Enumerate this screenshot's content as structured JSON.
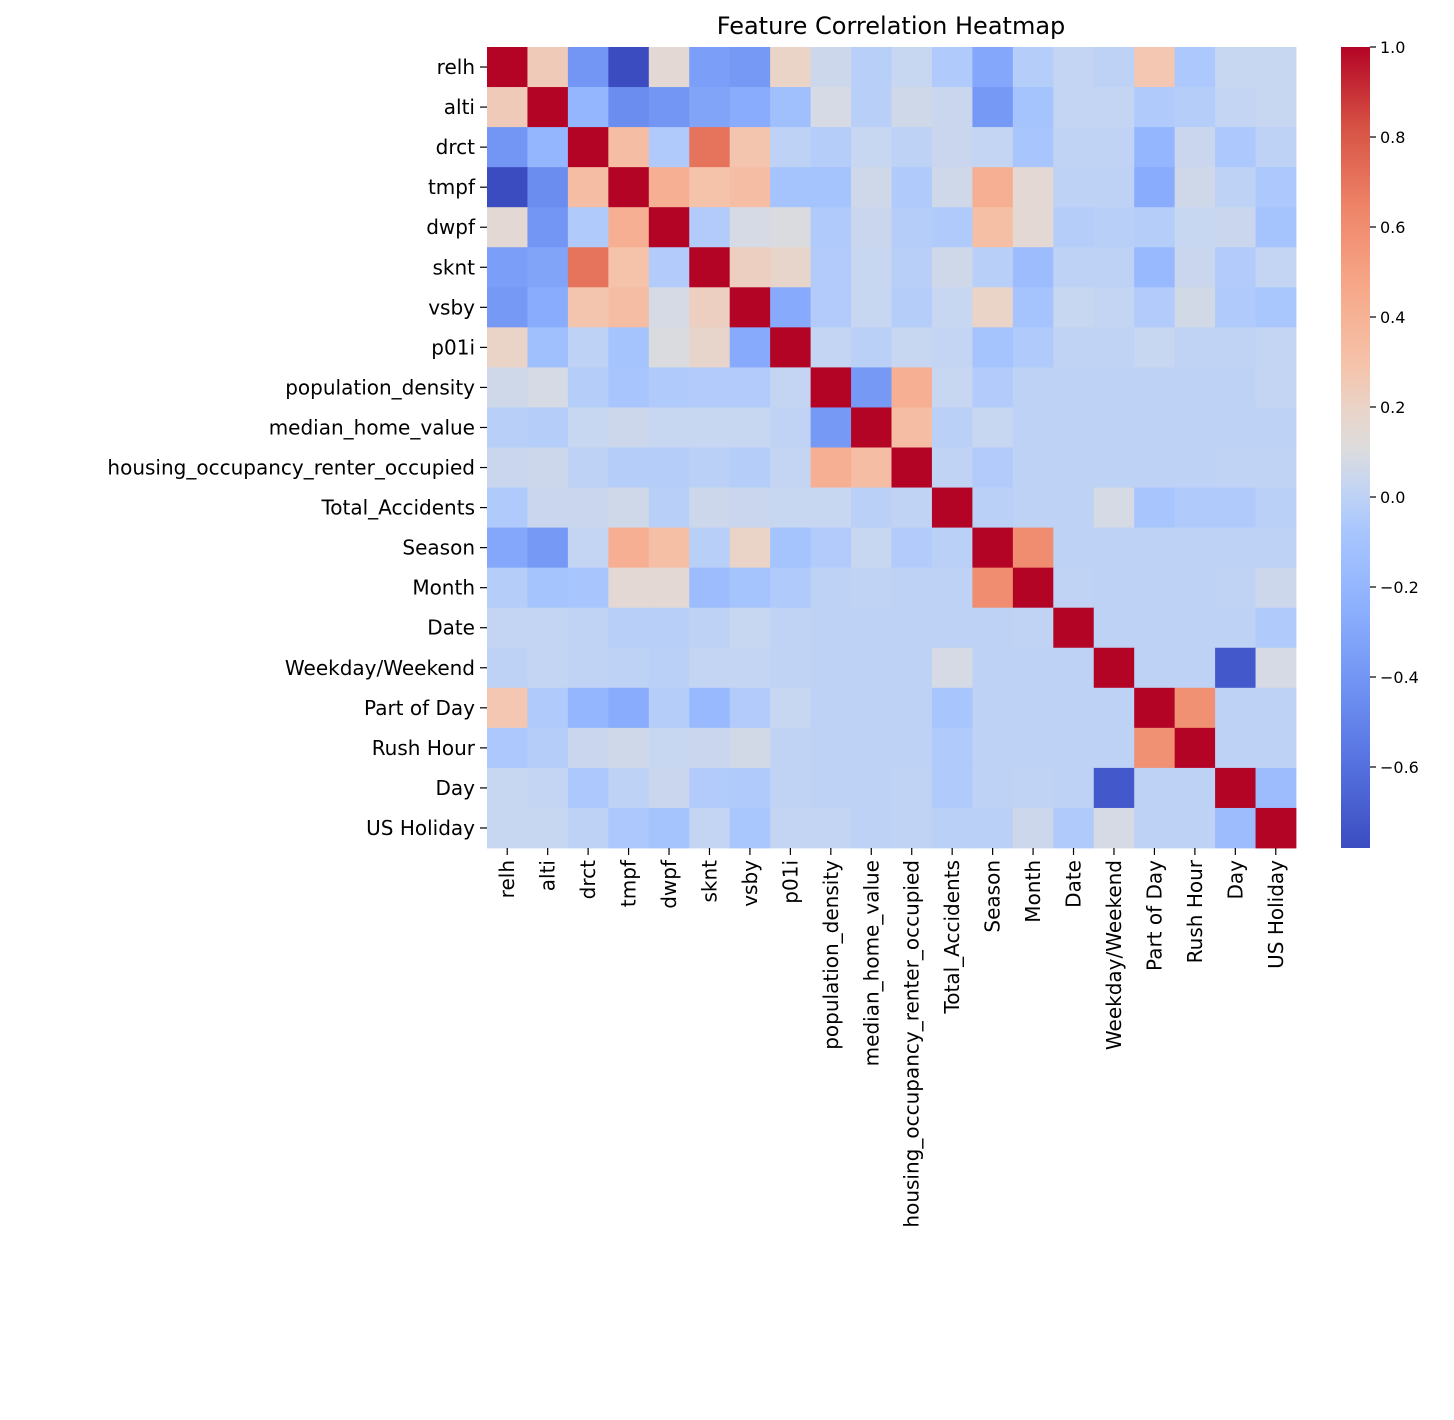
{
  "chart_data": {
    "type": "heatmap",
    "title": "Feature Correlation Heatmap",
    "xlabel": "",
    "ylabel": "",
    "colormap": "coolwarm",
    "color_range": [
      -0.78,
      1.0
    ],
    "colorbar_ticks": [
      "1.0",
      "0.8",
      "0.6",
      "0.4",
      "0.2",
      "0.0",
      "−0.2",
      "−0.4",
      "−0.6"
    ],
    "colorbar_tick_values": [
      1.0,
      0.8,
      0.6,
      0.4,
      0.2,
      0.0,
      -0.2,
      -0.4,
      -0.6
    ],
    "labels": [
      "relh",
      "alti",
      "drct",
      "tmpf",
      "dwpf",
      "sknt",
      "vsby",
      "p01i",
      "population_density",
      "median_home_value",
      "housing_occupancy_renter_occupied",
      "Total_Accidents",
      "Season",
      "Month",
      "Date",
      "Weekday/Weekend",
      "Part of Day",
      "Rush Hour",
      "Day",
      "US Holiday"
    ],
    "values": [
      [
        1,
        0.25,
        -0.4,
        -0.78,
        0.15,
        -0.35,
        -0.38,
        0.2,
        0.05,
        -0.02,
        0.03,
        -0.05,
        -0.3,
        -0.03,
        0.02,
        0,
        0.27,
        -0.06,
        0.03,
        0.03
      ],
      [
        0.25,
        1,
        -0.2,
        -0.45,
        -0.4,
        -0.32,
        -0.27,
        -0.13,
        0.08,
        -0.02,
        0.06,
        0.04,
        -0.38,
        -0.1,
        0.02,
        0.02,
        -0.05,
        -0.03,
        0.02,
        0.03
      ],
      [
        -0.4,
        -0.2,
        1,
        0.33,
        -0.05,
        0.7,
        0.28,
        0,
        -0.03,
        0.03,
        0,
        0.04,
        0.02,
        -0.08,
        0.01,
        0.01,
        -0.2,
        0.04,
        -0.06,
        0
      ],
      [
        -0.78,
        -0.45,
        0.33,
        1,
        0.42,
        0.3,
        0.33,
        -0.1,
        -0.1,
        0.06,
        -0.05,
        0.06,
        0.42,
        0.15,
        0,
        0,
        -0.27,
        0.06,
        0,
        -0.06
      ],
      [
        0.15,
        -0.4,
        -0.05,
        0.42,
        1,
        -0.04,
        0.08,
        0.1,
        -0.05,
        0.04,
        -0.03,
        -0.05,
        0.32,
        0.15,
        -0.03,
        -0.02,
        -0.03,
        0.03,
        0.04,
        -0.1
      ],
      [
        -0.35,
        -0.32,
        0.7,
        0.3,
        -0.04,
        1,
        0.22,
        0.18,
        -0.04,
        0.03,
        -0.02,
        0.06,
        -0.02,
        -0.15,
        0,
        0,
        -0.18,
        0.04,
        -0.04,
        0.02
      ],
      [
        -0.38,
        -0.27,
        0.28,
        0.33,
        0.08,
        0.22,
        1,
        -0.28,
        -0.04,
        0.03,
        -0.03,
        0.03,
        0.2,
        -0.1,
        0.03,
        0.02,
        -0.04,
        0.07,
        -0.05,
        -0.07
      ],
      [
        0.2,
        -0.13,
        0,
        -0.1,
        0.1,
        0.18,
        -0.28,
        1,
        0.02,
        -0.01,
        0.03,
        0.02,
        -0.1,
        -0.05,
        0.01,
        0.01,
        0.03,
        0.01,
        0.01,
        0.02
      ],
      [
        0.06,
        0.08,
        -0.03,
        -0.08,
        -0.05,
        -0.04,
        -0.04,
        0.02,
        1,
        -0.38,
        0.42,
        0.03,
        -0.04,
        0,
        0,
        0,
        0,
        0,
        0,
        0.02
      ],
      [
        -0.02,
        -0.03,
        0.03,
        0.05,
        0.03,
        0.03,
        0.03,
        0.01,
        -0.38,
        1,
        0.33,
        -0.01,
        0.03,
        0,
        0,
        0,
        0,
        0,
        0,
        0
      ],
      [
        0.04,
        0.05,
        0,
        -0.03,
        -0.03,
        -0.01,
        -0.03,
        0.02,
        0.42,
        0.33,
        1,
        0.01,
        -0.04,
        0,
        0,
        0,
        0,
        0,
        0.01,
        0.01
      ],
      [
        -0.05,
        0.04,
        0.04,
        0.06,
        -0.02,
        0.05,
        0.04,
        0.03,
        0.03,
        -0.01,
        0.01,
        1,
        -0.01,
        0,
        0,
        0.08,
        -0.08,
        -0.05,
        -0.05,
        -0.01
      ],
      [
        -0.3,
        -0.38,
        0.02,
        0.42,
        0.32,
        -0.02,
        0.2,
        -0.1,
        -0.04,
        0.03,
        -0.04,
        -0.01,
        1,
        0.6,
        0,
        0,
        0,
        0,
        0,
        0
      ],
      [
        -0.03,
        -0.1,
        -0.08,
        0.15,
        0.15,
        -0.15,
        -0.1,
        -0.05,
        0,
        0.01,
        0,
        0,
        0.6,
        1,
        0.01,
        0,
        0,
        0,
        0.01,
        0.05
      ],
      [
        0.02,
        0.02,
        0.01,
        -0.02,
        -0.02,
        0,
        0.03,
        0.01,
        0,
        0,
        0,
        0,
        0,
        0.01,
        1,
        0,
        0,
        0,
        0,
        -0.05
      ],
      [
        0,
        0.02,
        0.01,
        0,
        -0.01,
        0.02,
        0.02,
        0.01,
        0,
        0,
        0,
        0.08,
        0,
        0,
        0,
        1,
        0,
        0,
        -0.72,
        0.08
      ],
      [
        0.27,
        -0.05,
        -0.2,
        -0.27,
        -0.03,
        -0.18,
        -0.04,
        0.03,
        0,
        0,
        0,
        -0.08,
        0,
        0,
        0,
        0,
        1,
        0.58,
        0,
        0
      ],
      [
        -0.06,
        -0.03,
        0.04,
        0.06,
        0.03,
        0.04,
        0.07,
        0.01,
        0,
        0,
        0,
        -0.05,
        0,
        0,
        0,
        0,
        0.58,
        1,
        0,
        0
      ],
      [
        0.03,
        0.02,
        -0.06,
        0,
        0.04,
        -0.04,
        -0.05,
        0.01,
        0,
        0,
        0.01,
        -0.05,
        0,
        0.01,
        0,
        -0.72,
        0,
        0,
        1,
        -0.15
      ],
      [
        0.03,
        0.03,
        0,
        -0.06,
        -0.1,
        0.02,
        -0.07,
        0.02,
        0.02,
        0,
        0.01,
        -0.01,
        -0.01,
        0.05,
        -0.05,
        0.08,
        0,
        0,
        -0.15,
        1
      ]
    ]
  }
}
